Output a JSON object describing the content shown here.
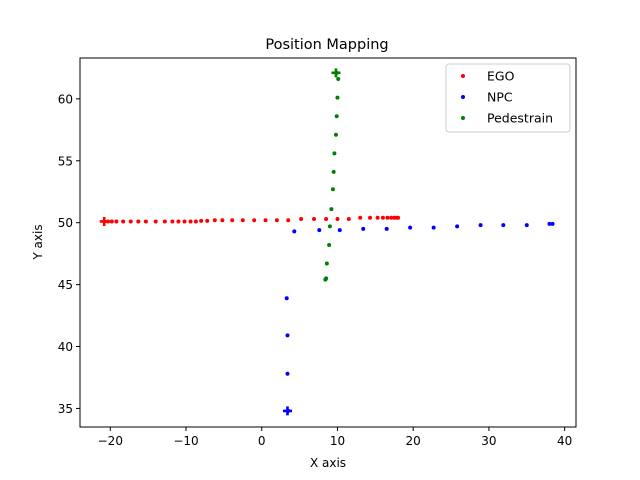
{
  "chart_data": {
    "type": "scatter",
    "title": "Position Mapping",
    "xlabel": "X axis",
    "ylabel": "Y axis",
    "xlim": [
      -24,
      41.5
    ],
    "ylim": [
      33.5,
      63.3
    ],
    "xticks": [
      -20,
      -10,
      0,
      10,
      20,
      30,
      40
    ],
    "xtick_labels": [
      "−20",
      "−10",
      "0",
      "10",
      "20",
      "30",
      "40"
    ],
    "yticks": [
      35,
      40,
      45,
      50,
      55,
      60
    ],
    "ytick_labels": [
      "35",
      "40",
      "45",
      "50",
      "55",
      "60"
    ],
    "grid": false,
    "legend_position": "top-right",
    "series": [
      {
        "name": "EGO",
        "color": "#ff0000",
        "start": [
          -20.8,
          50.1
        ],
        "x": [
          -20.8,
          -20.3,
          -19.8,
          -19.2,
          -18.3,
          -17.3,
          -16.3,
          -15.3,
          -14.0,
          -12.8,
          -11.8,
          -11.0,
          -10.2,
          -9.4,
          -8.7,
          -8.0,
          -7.2,
          -6.2,
          -5.2,
          -3.9,
          -2.5,
          -1.0,
          0.5,
          2.0,
          3.5,
          5.2,
          6.9,
          8.5,
          10.0,
          11.5,
          13.0,
          14.3,
          15.3,
          16.0,
          16.6,
          17.1,
          17.5,
          17.8,
          18.0
        ],
        "y": [
          50.1,
          50.1,
          50.1,
          50.1,
          50.1,
          50.1,
          50.1,
          50.1,
          50.1,
          50.1,
          50.1,
          50.1,
          50.1,
          50.1,
          50.1,
          50.15,
          50.15,
          50.2,
          50.2,
          50.2,
          50.2,
          50.2,
          50.2,
          50.2,
          50.2,
          50.3,
          50.3,
          50.3,
          50.3,
          50.3,
          50.4,
          50.4,
          50.4,
          50.4,
          50.4,
          50.4,
          50.4,
          50.4,
          50.4
        ]
      },
      {
        "name": "NPC",
        "color": "#0000ff",
        "start": [
          3.4,
          34.8
        ],
        "x": [
          3.5,
          3.4,
          3.4,
          3.3,
          4.3,
          7.6,
          10.3,
          13.4,
          16.5,
          19.6,
          22.7,
          25.8,
          28.9,
          31.9,
          35.0,
          38.0,
          38.4
        ],
        "y": [
          34.8,
          37.8,
          40.9,
          43.9,
          49.3,
          49.4,
          49.4,
          49.5,
          49.5,
          49.6,
          49.6,
          49.7,
          49.8,
          49.8,
          49.8,
          49.9,
          49.9
        ]
      },
      {
        "name": "Pedestrain",
        "color": "#008000",
        "start": [
          9.8,
          62.1
        ],
        "x": [
          8.4,
          8.5,
          8.6,
          8.9,
          9.0,
          9.2,
          9.4,
          9.5,
          9.6,
          9.8,
          9.9,
          10.0,
          10.1,
          9.9
        ],
        "y": [
          45.4,
          45.5,
          46.7,
          48.2,
          49.7,
          51.1,
          52.7,
          54.1,
          55.6,
          57.1,
          58.6,
          60.1,
          61.6,
          62.1
        ]
      }
    ]
  }
}
